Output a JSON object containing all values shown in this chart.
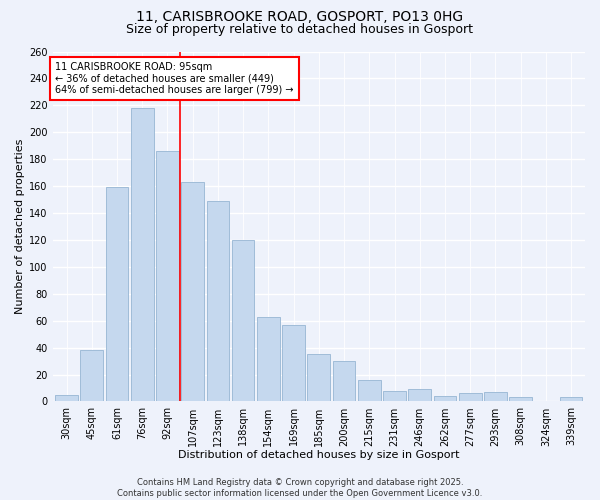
{
  "title": "11, CARISBROOKE ROAD, GOSPORT, PO13 0HG",
  "subtitle": "Size of property relative to detached houses in Gosport",
  "xlabel": "Distribution of detached houses by size in Gosport",
  "ylabel": "Number of detached properties",
  "categories": [
    "30sqm",
    "45sqm",
    "61sqm",
    "76sqm",
    "92sqm",
    "107sqm",
    "123sqm",
    "138sqm",
    "154sqm",
    "169sqm",
    "185sqm",
    "200sqm",
    "215sqm",
    "231sqm",
    "246sqm",
    "262sqm",
    "277sqm",
    "293sqm",
    "308sqm",
    "324sqm",
    "339sqm"
  ],
  "values": [
    5,
    38,
    159,
    218,
    186,
    163,
    149,
    120,
    63,
    57,
    35,
    30,
    16,
    8,
    9,
    4,
    6,
    7,
    3,
    0,
    3
  ],
  "bar_color": "#c5d8ee",
  "bar_edge_color": "#a0bcd8",
  "vline_x_index": 4,
  "vline_color": "red",
  "annotation_title": "11 CARISBROOKE ROAD: 95sqm",
  "annotation_line1": "← 36% of detached houses are smaller (449)",
  "annotation_line2": "64% of semi-detached houses are larger (799) →",
  "annotation_box_color": "white",
  "annotation_box_edge": "red",
  "ylim": [
    0,
    260
  ],
  "yticks": [
    0,
    20,
    40,
    60,
    80,
    100,
    120,
    140,
    160,
    180,
    200,
    220,
    240,
    260
  ],
  "footer1": "Contains HM Land Registry data © Crown copyright and database right 2025.",
  "footer2": "Contains public sector information licensed under the Open Government Licence v3.0.",
  "bg_color": "#eef2fb",
  "grid_color": "white",
  "title_fontsize": 10,
  "subtitle_fontsize": 9,
  "axis_label_fontsize": 8,
  "tick_fontsize": 7,
  "annotation_fontsize": 7,
  "footer_fontsize": 6
}
